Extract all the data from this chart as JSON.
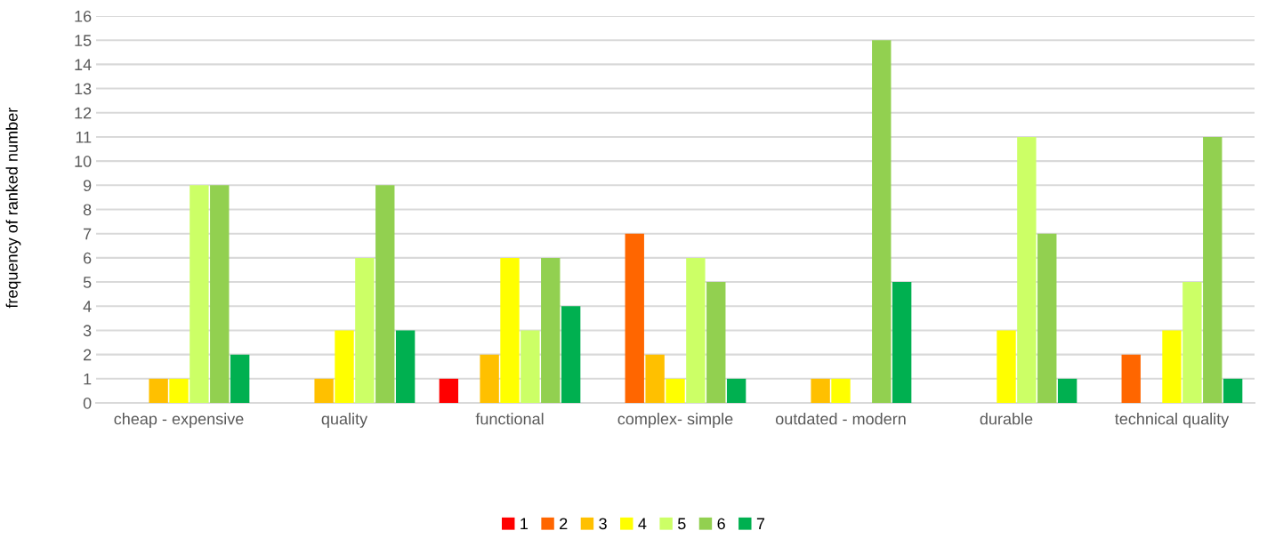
{
  "chart_data": {
    "type": "bar",
    "ylabel": "frequency of ranked number",
    "categories": [
      "cheap - expensive",
      "quality",
      "functional",
      "complex- simple",
      "outdated - modern",
      "durable",
      "technical quality"
    ],
    "series": [
      {
        "name": "1",
        "color": "#ff0000",
        "values": [
          0,
          0,
          1,
          0,
          0,
          0,
          0
        ]
      },
      {
        "name": "2",
        "color": "#ff6600",
        "values": [
          0,
          0,
          0,
          7,
          0,
          0,
          2
        ]
      },
      {
        "name": "3",
        "color": "#ffc000",
        "values": [
          1,
          1,
          2,
          2,
          1,
          0,
          0
        ]
      },
      {
        "name": "4",
        "color": "#ffff00",
        "values": [
          1,
          3,
          6,
          1,
          1,
          3,
          3
        ]
      },
      {
        "name": "5",
        "color": "#ccff66",
        "values": [
          9,
          6,
          3,
          6,
          0,
          11,
          5
        ]
      },
      {
        "name": "6",
        "color": "#92d050",
        "values": [
          9,
          9,
          6,
          5,
          15,
          7,
          11
        ]
      },
      {
        "name": "7",
        "color": "#00b050",
        "values": [
          2,
          3,
          4,
          1,
          5,
          1,
          1
        ]
      }
    ],
    "ylim": [
      0,
      16
    ],
    "yticks": [
      0,
      1,
      2,
      3,
      4,
      5,
      6,
      7,
      8,
      9,
      10,
      11,
      12,
      13,
      14,
      15,
      16
    ],
    "grid": "y",
    "legend": "bottom"
  }
}
